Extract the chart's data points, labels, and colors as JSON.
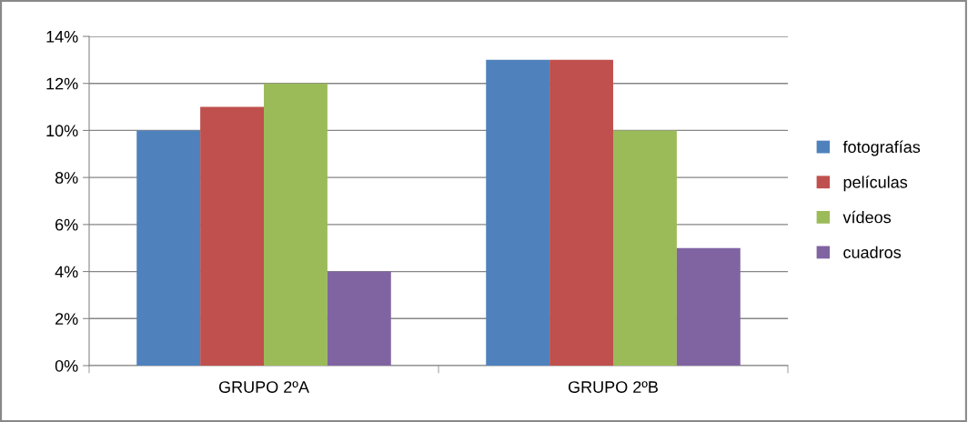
{
  "chart_data": {
    "type": "bar",
    "categories": [
      "GRUPO 2ºA",
      "GRUPO 2ºB"
    ],
    "series": [
      {
        "name": "fotografías",
        "color": "#4f81bd",
        "values": [
          10,
          13
        ]
      },
      {
        "name": "películas",
        "color": "#c0504d",
        "values": [
          11,
          13
        ]
      },
      {
        "name": "vídeos",
        "color": "#9bbb59",
        "values": [
          12,
          10
        ]
      },
      {
        "name": "cuadros",
        "color": "#8064a2",
        "values": [
          4,
          5
        ]
      }
    ],
    "ylim": [
      0,
      14
    ],
    "yticks": [
      {
        "value": 0,
        "label": "0%"
      },
      {
        "value": 2,
        "label": "2%"
      },
      {
        "value": 4,
        "label": "4%"
      },
      {
        "value": 6,
        "label": "6%"
      },
      {
        "value": 8,
        "label": "8%"
      },
      {
        "value": 10,
        "label": "10%"
      },
      {
        "value": 12,
        "label": "12%"
      },
      {
        "value": 14,
        "label": "14%"
      }
    ],
    "grid": "y",
    "legend": "right"
  }
}
